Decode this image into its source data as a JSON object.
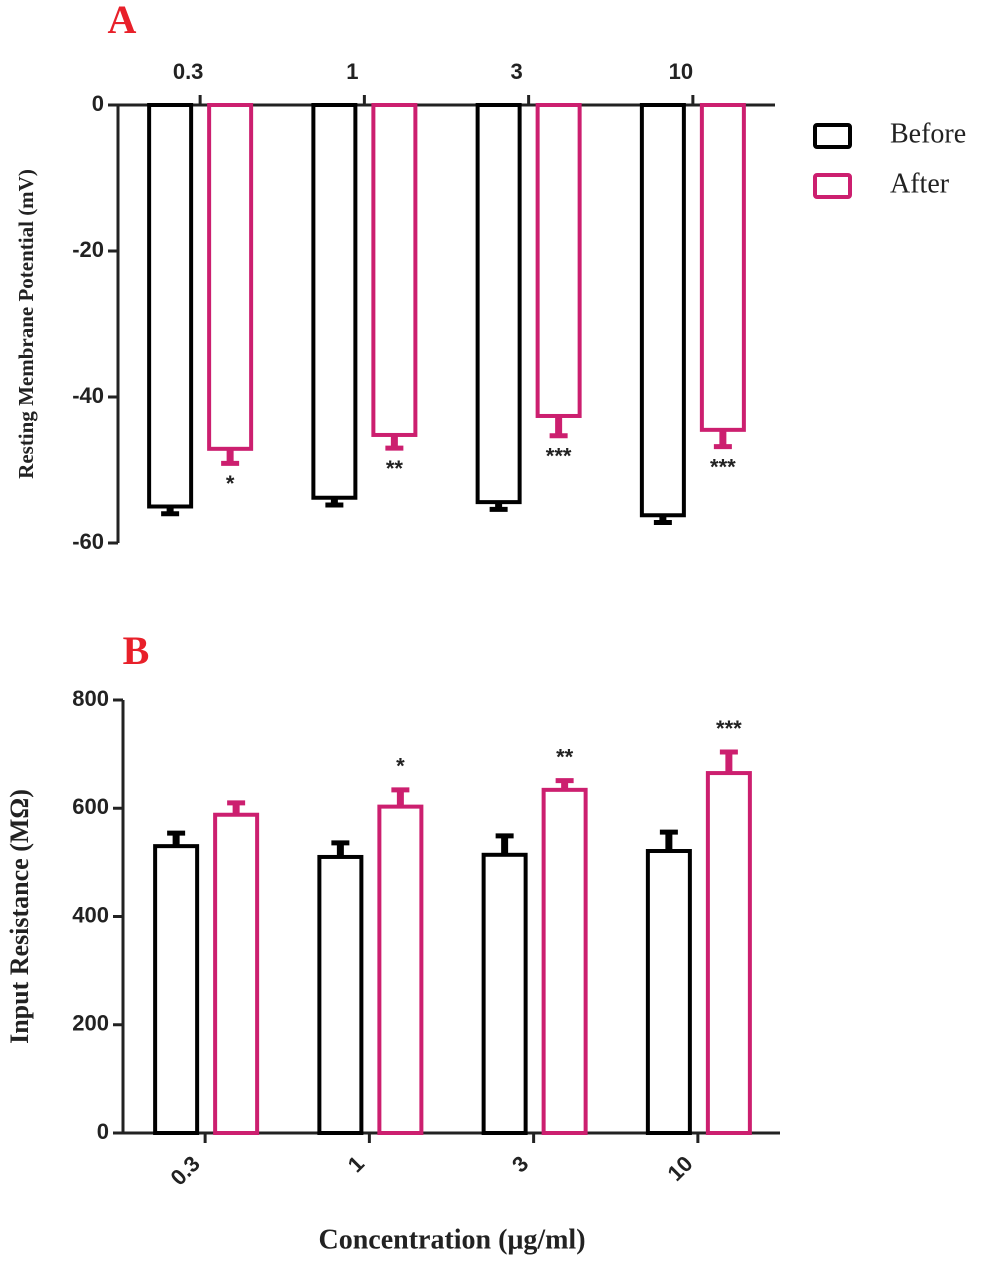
{
  "chart_data": [
    {
      "type": "bar",
      "label": "A",
      "ylabel": "Resting Membrane Potential (mV)",
      "categories": [
        "0.3",
        "1",
        "3",
        "10"
      ],
      "series": [
        {
          "name": "Before",
          "color": "#000000",
          "values": [
            -55,
            -53.8,
            -54.4,
            -56.2
          ],
          "errors": [
            1,
            1,
            1,
            1
          ]
        },
        {
          "name": "After",
          "color": "#cc1f6f",
          "values": [
            -47.1,
            -45.2,
            -42.6,
            -44.5
          ],
          "errors": [
            2,
            1.8,
            2.7,
            2.3
          ]
        }
      ],
      "annotations": [
        "*",
        "**",
        "***",
        "***"
      ],
      "ylim": [
        -60,
        0
      ],
      "yticks": [
        0,
        -20,
        -40,
        -60
      ]
    },
    {
      "type": "bar",
      "label": "B",
      "ylabel": "Input Resistance (MΩ)",
      "xlabel": "Concentration (μg/ml)",
      "categories": [
        "0.3",
        "1",
        "3",
        "10"
      ],
      "series": [
        {
          "color": "#000000",
          "values": [
            530,
            510,
            514,
            521
          ],
          "errors": [
            24,
            26,
            35,
            35
          ]
        },
        {
          "color": "#cc1f6f",
          "values": [
            588,
            603,
            634,
            665
          ],
          "errors": [
            22,
            31,
            17,
            39
          ]
        }
      ],
      "annotations": [
        null,
        "*",
        "**",
        "***"
      ],
      "ylim": [
        0,
        800
      ],
      "yticks": [
        0,
        200,
        400,
        600,
        800
      ]
    }
  ]
}
